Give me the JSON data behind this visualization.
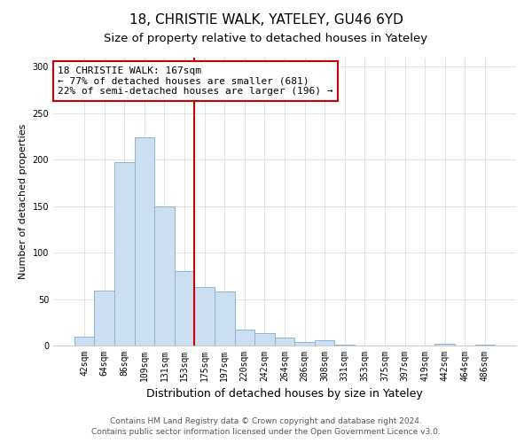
{
  "title": "18, CHRISTIE WALK, YATELEY, GU46 6YD",
  "subtitle": "Size of property relative to detached houses in Yateley",
  "xlabel": "Distribution of detached houses by size in Yateley",
  "ylabel": "Number of detached properties",
  "bar_labels": [
    "42sqm",
    "64sqm",
    "86sqm",
    "109sqm",
    "131sqm",
    "153sqm",
    "175sqm",
    "197sqm",
    "220sqm",
    "242sqm",
    "264sqm",
    "286sqm",
    "308sqm",
    "331sqm",
    "353sqm",
    "375sqm",
    "397sqm",
    "419sqm",
    "442sqm",
    "464sqm",
    "486sqm"
  ],
  "bar_values": [
    10,
    59,
    197,
    224,
    150,
    80,
    63,
    58,
    17,
    13,
    9,
    4,
    6,
    1,
    0,
    0,
    0,
    0,
    2,
    0,
    1
  ],
  "bar_color": "#ccdff0",
  "bar_edge_color": "#8ab4d4",
  "vline_color": "#cc0000",
  "ylim": [
    0,
    310
  ],
  "yticks": [
    0,
    50,
    100,
    150,
    200,
    250,
    300
  ],
  "annotation_title": "18 CHRISTIE WALK: 167sqm",
  "annotation_line1": "← 77% of detached houses are smaller (681)",
  "annotation_line2": "22% of semi-detached houses are larger (196) →",
  "annotation_box_color": "#ffffff",
  "annotation_box_edge": "#cc0000",
  "footer1": "Contains HM Land Registry data © Crown copyright and database right 2024.",
  "footer2": "Contains public sector information licensed under the Open Government Licence v3.0.",
  "title_fontsize": 11,
  "subtitle_fontsize": 9.5,
  "xlabel_fontsize": 9,
  "ylabel_fontsize": 8,
  "tick_fontsize": 7,
  "annotation_fontsize": 8,
  "footer_fontsize": 6.5,
  "grid_color": "#dddddd",
  "vline_bar_index": 6
}
